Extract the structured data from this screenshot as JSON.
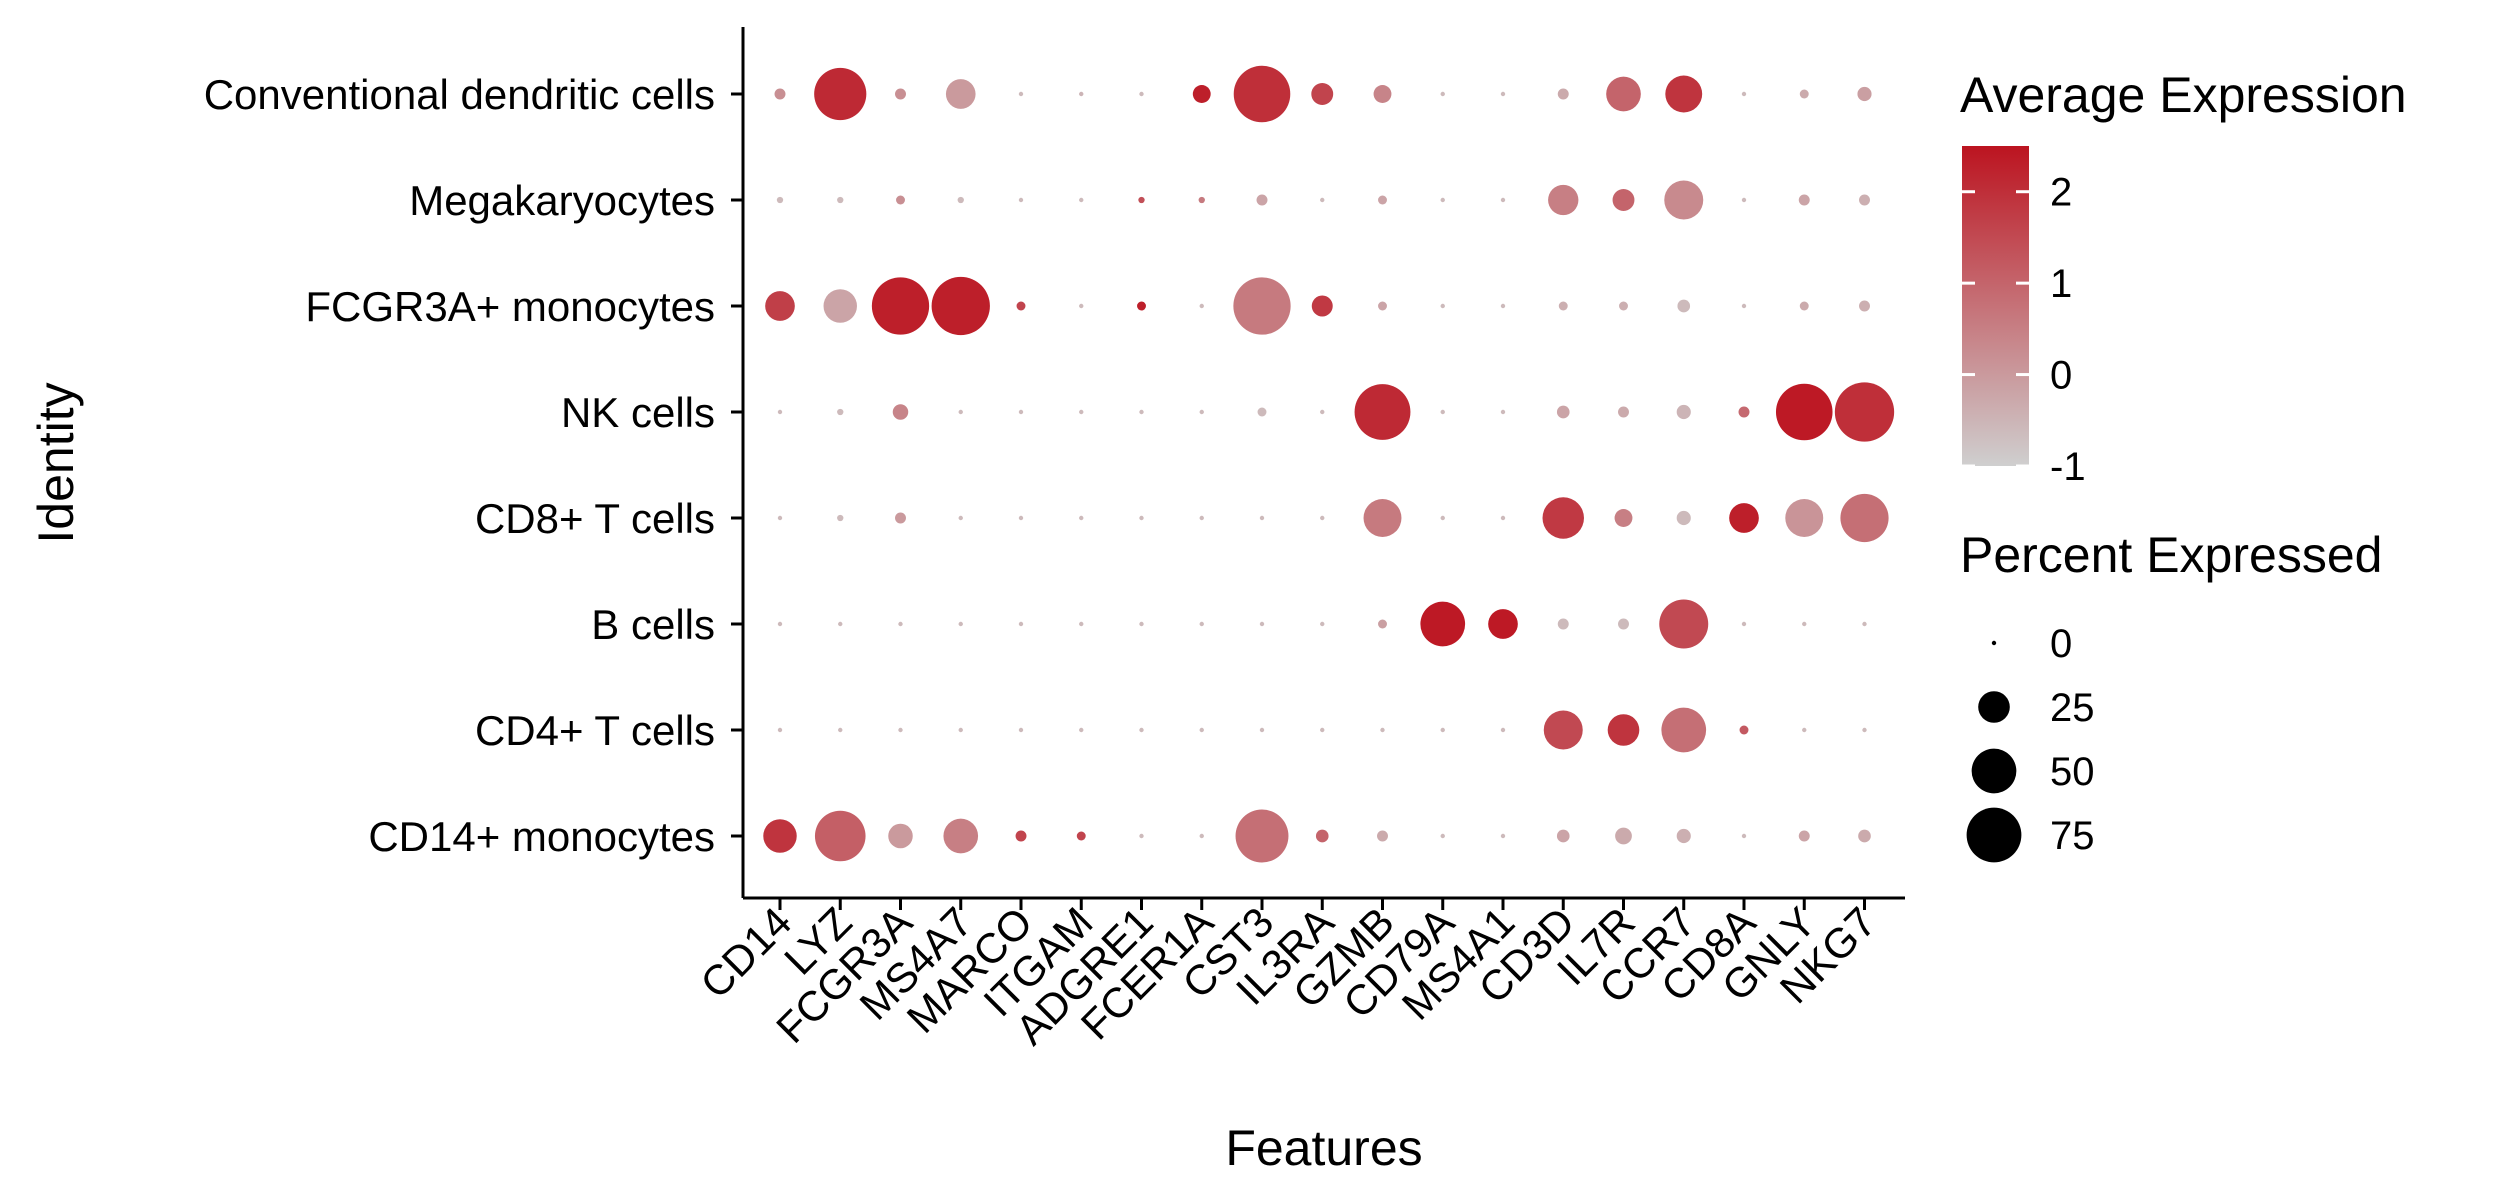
{
  "chart_data": {
    "type": "dotplot",
    "xlabel": "Features",
    "ylabel": "Identity",
    "features": [
      "CD14",
      "LYZ",
      "FCGR3A",
      "MS4A7",
      "MARCO",
      "ITGAM",
      "ADGRE1",
      "FCER1A",
      "CST3",
      "IL3RA",
      "GZMB",
      "CD79A",
      "MS4A1",
      "CD3D",
      "IL7R",
      "CCR7",
      "CD8A",
      "GNLY",
      "NKG7"
    ],
    "identities": [
      "Conventional dendritic cells",
      "Megakaryocytes",
      "FCGR3A+ monocytes",
      "NK cells",
      "CD8+ T cells",
      "B cells",
      "CD4+ T cells",
      "CD14+ monocytes"
    ],
    "percent_expressed": [
      [
        3,
        68,
        3,
        22,
        0,
        0,
        0,
        8,
        80,
        12,
        8,
        0,
        0,
        3,
        30,
        34,
        0,
        2,
        5
      ],
      [
        1,
        1,
        2,
        1,
        0,
        0,
        1,
        1,
        3,
        0,
        2,
        0,
        0,
        23,
        12,
        38,
        0,
        3,
        3
      ],
      [
        22,
        28,
        82,
        85,
        2,
        0,
        2,
        0,
        82,
        11,
        2,
        0,
        0,
        2,
        2,
        4,
        0,
        2,
        3
      ],
      [
        0,
        1,
        6,
        0,
        0,
        0,
        0,
        0,
        2,
        0,
        78,
        0,
        0,
        4,
        3,
        5,
        3,
        80,
        88
      ],
      [
        0,
        1,
        3,
        0,
        0,
        0,
        0,
        0,
        0,
        0,
        36,
        0,
        0,
        43,
        8,
        5,
        22,
        36,
        58
      ],
      [
        0,
        0,
        0,
        0,
        0,
        0,
        0,
        0,
        0,
        0,
        2,
        50,
        22,
        3,
        3,
        60,
        0,
        0,
        0
      ],
      [
        0,
        0,
        0,
        0,
        0,
        0,
        0,
        0,
        0,
        0,
        0,
        0,
        0,
        38,
        25,
        50,
        2,
        0,
        0
      ],
      [
        28,
        64,
        15,
        30,
        3,
        2,
        0,
        0,
        70,
        4,
        3,
        0,
        0,
        4,
        7,
        5,
        0,
        3,
        4
      ]
    ],
    "average_expression": [
      [
        0.2,
        2.1,
        0.2,
        0.0,
        -0.6,
        -0.5,
        -0.6,
        2.3,
        2.0,
        1.6,
        0.4,
        -0.6,
        -0.6,
        -0.3,
        1.0,
        1.9,
        -0.6,
        -0.3,
        -0.1
      ],
      [
        -0.6,
        -0.6,
        0.2,
        -0.6,
        -0.6,
        -0.6,
        1.4,
        0.6,
        -0.2,
        -0.6,
        -0.2,
        -0.6,
        -0.6,
        0.5,
        1.0,
        0.3,
        -0.6,
        -0.2,
        -0.4
      ],
      [
        1.7,
        -0.2,
        2.3,
        2.3,
        1.6,
        -0.6,
        2.3,
        -0.6,
        0.6,
        1.8,
        -0.2,
        -0.6,
        -0.6,
        -0.4,
        -0.4,
        -0.6,
        -0.6,
        -0.3,
        -0.4
      ],
      [
        -0.6,
        -0.6,
        0.4,
        -0.6,
        -0.6,
        -0.6,
        -0.6,
        -0.6,
        -0.6,
        -0.6,
        2.1,
        -0.6,
        -0.6,
        -0.2,
        -0.3,
        -0.5,
        0.9,
        2.4,
        2.0
      ],
      [
        -0.6,
        -0.6,
        0.0,
        -0.6,
        -0.6,
        -0.6,
        -0.6,
        -0.6,
        -0.6,
        -0.6,
        0.6,
        -0.6,
        -0.6,
        1.8,
        0.5,
        -0.6,
        2.3,
        0.1,
        0.8
      ],
      [
        -0.6,
        -0.6,
        -0.6,
        -0.6,
        -0.6,
        -0.6,
        -0.6,
        -0.6,
        -0.6,
        -0.6,
        -0.1,
        2.4,
        2.4,
        -0.6,
        -0.6,
        1.5,
        -0.6,
        -0.6,
        -0.6
      ],
      [
        -0.6,
        -0.6,
        -0.6,
        -0.6,
        -0.6,
        -0.6,
        -0.6,
        -0.6,
        -0.6,
        -0.6,
        -0.6,
        -0.6,
        -0.6,
        1.5,
        1.9,
        0.8,
        1.2,
        -0.6,
        -0.6
      ],
      [
        1.9,
        1.1,
        0.0,
        0.5,
        1.6,
        1.6,
        -0.6,
        -0.6,
        0.8,
        1.0,
        -0.3,
        -0.6,
        -0.6,
        -0.2,
        -0.3,
        -0.4,
        -0.6,
        -0.2,
        -0.3
      ]
    ],
    "color_legend": {
      "title": "Average Expression",
      "ticks": [
        "2",
        "1",
        "0",
        "-1"
      ],
      "tick_values": [
        2,
        1,
        0,
        -1
      ],
      "range": [
        -1,
        2.5
      ],
      "low_color": "#cfcfcf",
      "high_color": "#bc1420"
    },
    "size_legend": {
      "title": "Percent Expressed",
      "labels": [
        "0",
        "25",
        "50",
        "75"
      ],
      "values": [
        0,
        25,
        50,
        75
      ]
    }
  }
}
